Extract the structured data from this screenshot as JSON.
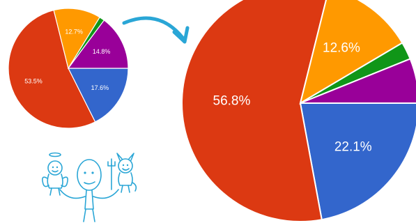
{
  "chart_data": [
    {
      "type": "pie",
      "title": "",
      "colors": [
        "#3366cc",
        "#dc3912",
        "#ff9900",
        "#109618",
        "#990099"
      ],
      "values": [
        17.6,
        53.5,
        12.7,
        1.4,
        14.8
      ],
      "labels": [
        "17.6%",
        "53.5%",
        "12.7%",
        "",
        "14.8%"
      ]
    },
    {
      "type": "pie",
      "title": "",
      "colors": [
        "#3366cc",
        "#dc3912",
        "#ff9900",
        "#109618",
        "#990099"
      ],
      "values": [
        22.1,
        56.8,
        12.6,
        2.4,
        6.1
      ],
      "labels": [
        "22.1%",
        "56.8%",
        "12.6%",
        "",
        ""
      ]
    }
  ],
  "arrow": {
    "color": "#2aa6d6"
  },
  "illustration": {
    "icon": "angel-devil-stick-figure-icon",
    "color": "#2aa6d6"
  }
}
